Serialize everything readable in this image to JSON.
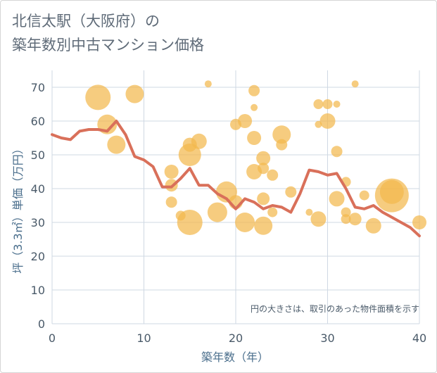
{
  "title_lines": [
    "北信太駅（大阪府）の",
    "築年数別中古マンション価格"
  ],
  "colors": {
    "bubble": "#f2b94d",
    "line": "#d9705a",
    "grid": "#cfd8e3",
    "axis_text": "#4a5a69",
    "axis_title": "#4a6e8c",
    "title": "#5f6b78"
  },
  "chart_data": {
    "type": "scatter",
    "title": "北信太駅（大阪府）の築年数別中古マンション価格",
    "xlabel": "築年数（年）",
    "ylabel": "坪（3.3㎡）単価（万円）",
    "xlim": [
      0,
      40
    ],
    "ylim": [
      0,
      75
    ],
    "x_ticks": [
      0,
      10,
      20,
      30,
      40
    ],
    "y_ticks": [
      0,
      10,
      20,
      30,
      40,
      50,
      60,
      70
    ],
    "grid": true,
    "note": "円の大きさは、取引のあった物件面積を示す",
    "bubbles": [
      {
        "x": 5,
        "y": 67,
        "size": 18
      },
      {
        "x": 9,
        "y": 68,
        "size": 13
      },
      {
        "x": 6,
        "y": 59,
        "size": 14
      },
      {
        "x": 7,
        "y": 53,
        "size": 13
      },
      {
        "x": 13,
        "y": 45,
        "size": 10
      },
      {
        "x": 13,
        "y": 41,
        "size": 9
      },
      {
        "x": 13,
        "y": 36,
        "size": 8
      },
      {
        "x": 14,
        "y": 32,
        "size": 7
      },
      {
        "x": 15,
        "y": 53,
        "size": 10
      },
      {
        "x": 15,
        "y": 50,
        "size": 16
      },
      {
        "x": 16,
        "y": 54,
        "size": 11
      },
      {
        "x": 15,
        "y": 30,
        "size": 18
      },
      {
        "x": 17,
        "y": 71,
        "size": 5
      },
      {
        "x": 19,
        "y": 39,
        "size": 15
      },
      {
        "x": 18,
        "y": 33,
        "size": 14
      },
      {
        "x": 20,
        "y": 59,
        "size": 8
      },
      {
        "x": 21,
        "y": 60,
        "size": 10
      },
      {
        "x": 20,
        "y": 36,
        "size": 10
      },
      {
        "x": 21,
        "y": 30,
        "size": 14
      },
      {
        "x": 22,
        "y": 69,
        "size": 8
      },
      {
        "x": 22,
        "y": 64,
        "size": 5
      },
      {
        "x": 22,
        "y": 55,
        "size": 10
      },
      {
        "x": 22,
        "y": 45,
        "size": 11
      },
      {
        "x": 23,
        "y": 49,
        "size": 10
      },
      {
        "x": 23,
        "y": 46,
        "size": 8
      },
      {
        "x": 23,
        "y": 37,
        "size": 9
      },
      {
        "x": 23,
        "y": 29,
        "size": 13
      },
      {
        "x": 24,
        "y": 44,
        "size": 8
      },
      {
        "x": 24,
        "y": 33,
        "size": 7
      },
      {
        "x": 25,
        "y": 56,
        "size": 13
      },
      {
        "x": 25,
        "y": 53,
        "size": 8
      },
      {
        "x": 26,
        "y": 39,
        "size": 8
      },
      {
        "x": 28,
        "y": 33,
        "size": 5
      },
      {
        "x": 29,
        "y": 65,
        "size": 7
      },
      {
        "x": 29,
        "y": 59,
        "size": 5
      },
      {
        "x": 29,
        "y": 31,
        "size": 11
      },
      {
        "x": 30,
        "y": 65,
        "size": 7
      },
      {
        "x": 30,
        "y": 60,
        "size": 11
      },
      {
        "x": 31,
        "y": 65,
        "size": 5
      },
      {
        "x": 31,
        "y": 51,
        "size": 8
      },
      {
        "x": 31,
        "y": 37,
        "size": 11
      },
      {
        "x": 32,
        "y": 42,
        "size": 7
      },
      {
        "x": 32,
        "y": 33,
        "size": 7
      },
      {
        "x": 32,
        "y": 31,
        "size": 7
      },
      {
        "x": 33,
        "y": 71,
        "size": 5
      },
      {
        "x": 33,
        "y": 31,
        "size": 9
      },
      {
        "x": 34,
        "y": 38,
        "size": 7
      },
      {
        "x": 35,
        "y": 29,
        "size": 11
      },
      {
        "x": 37,
        "y": 39,
        "size": 17
      },
      {
        "x": 37,
        "y": 38,
        "size": 24
      },
      {
        "x": 40,
        "y": 30,
        "size": 10
      }
    ],
    "series": [
      {
        "x": [
          0,
          1,
          2,
          3,
          4,
          5,
          6,
          7,
          8,
          9,
          10,
          11,
          12,
          13,
          14,
          15,
          16,
          17,
          18,
          19,
          20,
          21,
          22,
          23,
          24,
          25,
          26,
          27,
          28,
          29,
          30,
          31,
          32,
          33,
          34,
          35,
          36,
          37,
          38,
          39,
          40
        ],
        "y": [
          56,
          55,
          54.5,
          57,
          57.5,
          57.5,
          57,
          60,
          56,
          49.5,
          48.5,
          46.5,
          40.5,
          40.5,
          43,
          46,
          41,
          41,
          38.5,
          37,
          34,
          37,
          36,
          34,
          35,
          34.5,
          33,
          38.5,
          45.5,
          45,
          44,
          44.5,
          40,
          34.5,
          34,
          35,
          33,
          31.5,
          30,
          28.5,
          26
        ]
      }
    ]
  }
}
